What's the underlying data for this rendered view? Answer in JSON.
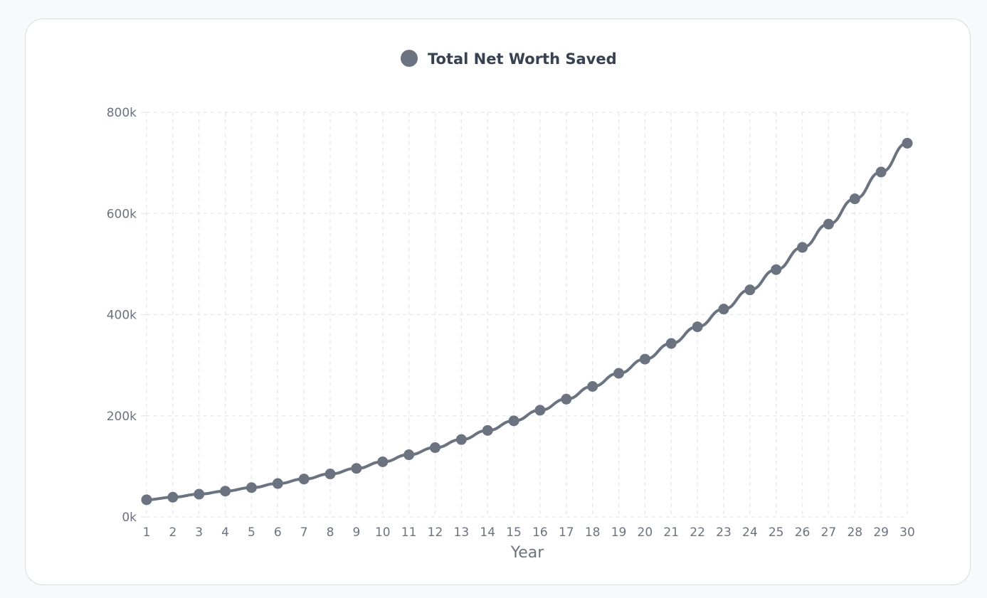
{
  "chart_data": {
    "type": "line",
    "title": "",
    "xlabel": "Year",
    "ylabel": "",
    "x": [
      "1",
      "2",
      "3",
      "4",
      "5",
      "6",
      "7",
      "8",
      "9",
      "10",
      "11",
      "12",
      "13",
      "14",
      "15",
      "16",
      "17",
      "18",
      "19",
      "20",
      "21",
      "22",
      "23",
      "24",
      "25",
      "26",
      "27",
      "28",
      "29",
      "30"
    ],
    "series": [
      {
        "name": "Total Net Worth Saved",
        "color": "#6b7280",
        "values": [
          34000,
          39000,
          45000,
          51000,
          58000,
          66000,
          75000,
          85000,
          96000,
          109000,
          123000,
          137000,
          153000,
          171000,
          190000,
          211000,
          233000,
          258000,
          284000,
          312000,
          343000,
          376000,
          411000,
          449000,
          489000,
          533000,
          579000,
          629000,
          682000,
          739000
        ]
      }
    ],
    "ylim": [
      0,
      800000
    ],
    "yticks": [
      0,
      200000,
      400000,
      600000,
      800000
    ],
    "ytick_labels": [
      "0k",
      "200k",
      "400k",
      "600k",
      "800k"
    ],
    "grid": true,
    "legend_position": "top-center"
  }
}
